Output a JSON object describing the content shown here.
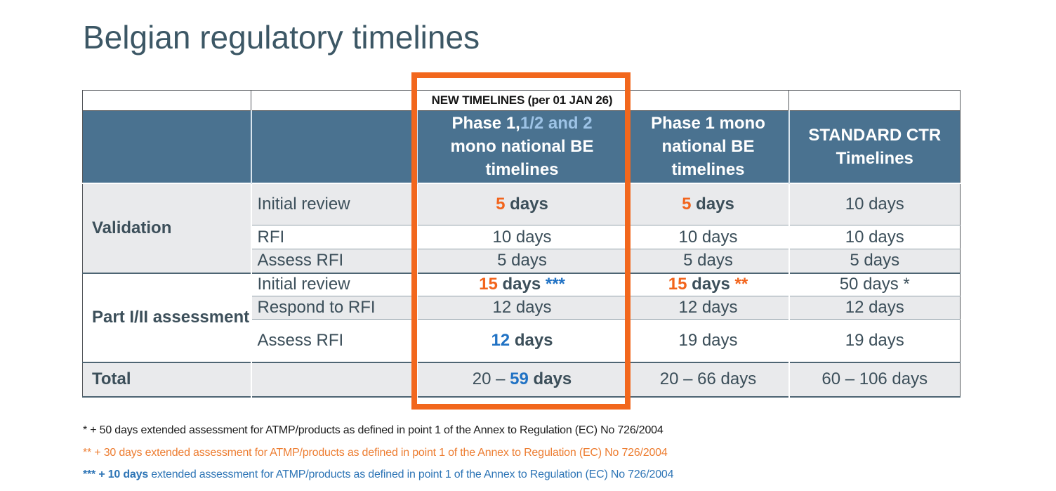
{
  "slide": {
    "title": "Belgian regulatory timelines"
  },
  "colors": {
    "header_bg": "#4A7290",
    "header_light_blue": "#9DC3E6",
    "accent_orange": "#F2641C",
    "accent_blue": "#2072C4",
    "box_orange": "#F2671D",
    "footnote_orange": "#ED7D31",
    "footnote_blue": "#2E75B6",
    "text_dark": "#3C4F5A",
    "row_alt_bg": "#E9EAEC",
    "title_color": "#3C5765"
  },
  "table": {
    "banner": "NEW TIMELINES (per 01 JAN 26)",
    "headers": {
      "new_be": {
        "l1a": "Phase 1,",
        "l1b": "1/2 and 2",
        "l2": "mono national BE",
        "l3": "timelines"
      },
      "p1": {
        "l1": "Phase 1 mono",
        "l2": "national BE",
        "l3": "timelines"
      },
      "ctr": {
        "l1": "STANDARD CTR",
        "l2": "Timelines"
      }
    },
    "groups": {
      "validation": "Validation",
      "part12": "Part I/II assessment",
      "total": "Total"
    },
    "rows": {
      "val_initial": {
        "step": "Initial review",
        "new_be": {
          "num": "5",
          "rest": " days"
        },
        "p1": {
          "num": "5",
          "rest": " days"
        },
        "ctr": "10 days"
      },
      "val_rfi": {
        "step": "RFI",
        "new_be": "10 days",
        "p1": "10 days",
        "ctr": "10 days"
      },
      "val_assess": {
        "step": "Assess RFI",
        "new_be": "5 days",
        "p1": "5 days",
        "ctr": "5 days"
      },
      "p12_initial": {
        "step": "Initial review",
        "new_be": {
          "num": "15",
          "rest": " days ",
          "stars": "***"
        },
        "p1": {
          "num": "15",
          "rest": " days ",
          "stars": "**"
        },
        "ctr": "50 days *"
      },
      "p12_respond": {
        "step": "Respond to RFI",
        "new_be": "12 days",
        "p1": "12 days",
        "ctr": "12 days"
      },
      "p12_assess": {
        "step": "Assess RFI",
        "new_be": {
          "num": "12",
          "rest": " days"
        },
        "p1": "19 days",
        "ctr": "19 days"
      },
      "total": {
        "new_be": {
          "prefix": "20 – ",
          "num": "59",
          "rest": " days"
        },
        "p1": "20 – 66 days",
        "ctr": "60 – 106 days"
      }
    }
  },
  "footnotes": {
    "fn1": {
      "text": "* + 50 days extended assessment for ATMP/products as defined in point 1 of the Annex to Regulation (EC) No 726/2004"
    },
    "fn2": {
      "text": "** + 30 days extended assessment for ATMP/products as defined in point 1 of the Annex to Regulation (EC) No 726/2004"
    },
    "fn3": {
      "bold": "*** + 10 days ",
      "rest": "extended assessment for ATMP/products as defined in point 1 of the Annex to Regulation (EC) No 726/2004"
    }
  }
}
